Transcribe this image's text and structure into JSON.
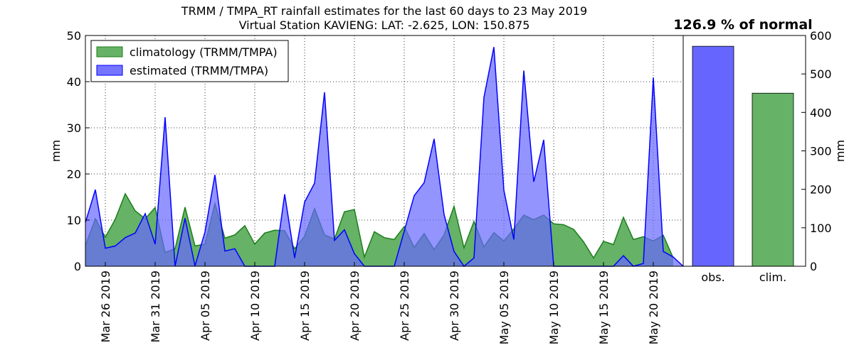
{
  "title_line1": "TRMM / TMPA_RT rainfall estimates for the last 60 days to 23 May 2019",
  "title_line2": "Virtual Station KAVIENG: LAT: -2.625, LON: 150.875",
  "percent_label": "126.9 % of normal",
  "colors": {
    "clim_fill": "#66b266",
    "clim_line": "#1a7f1a",
    "est_fill": "#6666ff",
    "est_line": "#0000ff"
  },
  "chart_data": [
    {
      "type": "area",
      "ylabel": "mm",
      "ylim": [
        0,
        50
      ],
      "yticks": [
        0,
        10,
        20,
        30,
        40,
        50
      ],
      "xlim": [
        "2019-03-24",
        "2019-05-23"
      ],
      "xticks": [
        "Mar 26 2019",
        "Mar 31 2019",
        "Apr 05 2019",
        "Apr 10 2019",
        "Apr 15 2019",
        "Apr 20 2019",
        "Apr 25 2019",
        "Apr 30 2019",
        "May 05 2019",
        "May 10 2019",
        "May 15 2019",
        "May 20 2019"
      ],
      "grid": true,
      "legend": "top-left",
      "x": [
        "2019-03-24",
        "2019-03-25",
        "2019-03-26",
        "2019-03-27",
        "2019-03-28",
        "2019-03-29",
        "2019-03-30",
        "2019-03-31",
        "2019-04-01",
        "2019-04-02",
        "2019-04-03",
        "2019-04-04",
        "2019-04-05",
        "2019-04-06",
        "2019-04-07",
        "2019-04-08",
        "2019-04-09",
        "2019-04-10",
        "2019-04-11",
        "2019-04-12",
        "2019-04-13",
        "2019-04-14",
        "2019-04-15",
        "2019-04-16",
        "2019-04-17",
        "2019-04-18",
        "2019-04-19",
        "2019-04-20",
        "2019-04-21",
        "2019-04-22",
        "2019-04-23",
        "2019-04-24",
        "2019-04-25",
        "2019-04-26",
        "2019-04-27",
        "2019-04-28",
        "2019-04-29",
        "2019-04-30",
        "2019-05-01",
        "2019-05-02",
        "2019-05-03",
        "2019-05-04",
        "2019-05-05",
        "2019-05-06",
        "2019-05-07",
        "2019-05-08",
        "2019-05-09",
        "2019-05-10",
        "2019-05-11",
        "2019-05-12",
        "2019-05-13",
        "2019-05-14",
        "2019-05-15",
        "2019-05-16",
        "2019-05-17",
        "2019-05-18",
        "2019-05-19",
        "2019-05-20",
        "2019-05-21",
        "2019-05-22",
        "2019-05-23"
      ],
      "series": [
        {
          "name": "climatology (TRMM/TMPA)",
          "values": [
            4.5,
            10.3,
            6.3,
            10.2,
            15.7,
            12.0,
            10.3,
            12.7,
            3.0,
            3.8,
            12.8,
            4.4,
            4.8,
            13.6,
            6.1,
            6.8,
            8.8,
            4.8,
            7.2,
            7.8,
            7.7,
            3.8,
            6.5,
            12.5,
            6.8,
            5.9,
            11.8,
            12.3,
            2.0,
            7.5,
            6.2,
            5.8,
            8.6,
            4.1,
            7.1,
            3.6,
            6.8,
            13.0,
            4.0,
            9.7,
            4.2,
            7.3,
            5.5,
            8.1,
            11.1,
            10.1,
            11.1,
            9.2,
            9.0,
            8.0,
            5.3,
            1.8,
            5.4,
            4.7,
            10.6,
            5.8,
            6.4,
            5.5,
            6.7,
            1.8,
            null
          ]
        },
        {
          "name": "estimated (TRMM/TMPA)",
          "values": [
            9.5,
            16.6,
            3.9,
            4.4,
            6.2,
            7.2,
            11.4,
            4.8,
            32.3,
            0.0,
            10.4,
            0.1,
            7.4,
            19.8,
            3.3,
            3.8,
            0.0,
            0.0,
            0.0,
            0.0,
            15.6,
            1.8,
            13.9,
            18.0,
            37.7,
            5.6,
            7.9,
            2.7,
            0.0,
            0.0,
            0.0,
            0.0,
            7.6,
            15.3,
            18.1,
            27.6,
            11.2,
            3.2,
            0.0,
            1.8,
            36.6,
            47.5,
            16.5,
            5.8,
            42.4,
            18.3,
            27.4,
            0.0,
            0.0,
            0.0,
            0.0,
            0.0,
            0.0,
            0.0,
            2.3,
            0.0,
            0.6,
            40.9,
            3.2,
            2.0,
            0.0
          ]
        }
      ]
    },
    {
      "type": "bar",
      "ylabel": "mm",
      "ylim": [
        0,
        600
      ],
      "yticks": [
        0,
        100,
        200,
        300,
        400,
        500,
        600
      ],
      "categories": [
        "obs.",
        "clim."
      ],
      "values": [
        572,
        450
      ]
    }
  ]
}
